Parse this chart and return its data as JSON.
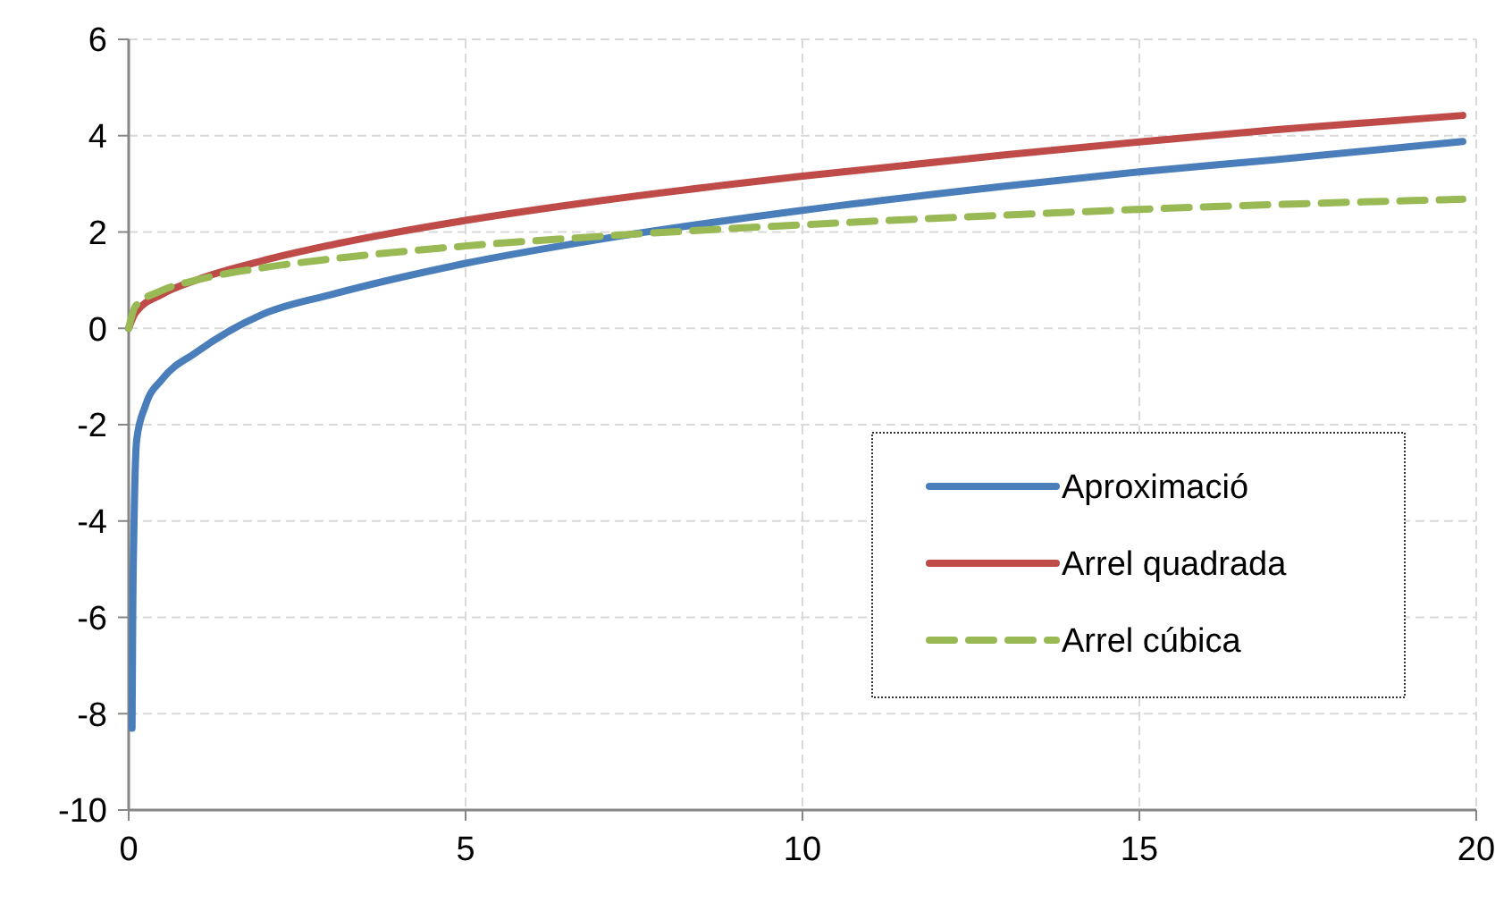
{
  "chart_data": {
    "type": "line",
    "xlim": [
      0,
      20
    ],
    "xticks": [
      0,
      5,
      10,
      15,
      20
    ],
    "ylim": [
      -10,
      6
    ],
    "yticks": [
      -10,
      -8,
      -6,
      -4,
      -2,
      0,
      2,
      4,
      6
    ],
    "grid": true,
    "legend": "right",
    "series": [
      {
        "name": "Aproximació",
        "color": "#4a7ebb",
        "line_style": "solid",
        "x": [
          0.05,
          0.06,
          0.08,
          0.12,
          0.25,
          0.5,
          1,
          2,
          3,
          5,
          7,
          10,
          13,
          15,
          17,
          19.8
        ],
        "values": [
          -8.3,
          -6,
          -4,
          -2.3,
          -1.6,
          -1.05,
          -0.5,
          0.3,
          0.7,
          1.35,
          1.85,
          2.45,
          2.95,
          3.25,
          3.5,
          3.88
        ]
      },
      {
        "name": "Arrel quadrada",
        "color": "#be4b48",
        "line_style": "solid",
        "x": [
          0,
          0.1,
          0.5,
          1,
          2,
          3,
          5,
          7,
          10,
          13,
          15,
          17,
          19.8
        ],
        "values": [
          0,
          0.32,
          0.71,
          1,
          1.41,
          1.73,
          2.24,
          2.65,
          3.16,
          3.6,
          3.87,
          4.12,
          4.42
        ]
      },
      {
        "name": "Arrel cúbica",
        "color": "#98b954",
        "line_style": "dashed",
        "x": [
          0,
          0.1,
          0.5,
          1,
          2,
          3,
          5,
          7,
          10,
          13,
          15,
          17,
          19.8
        ],
        "values": [
          0,
          0.46,
          0.79,
          1,
          1.26,
          1.44,
          1.71,
          1.91,
          2.15,
          2.35,
          2.47,
          2.57,
          2.68
        ]
      }
    ]
  }
}
